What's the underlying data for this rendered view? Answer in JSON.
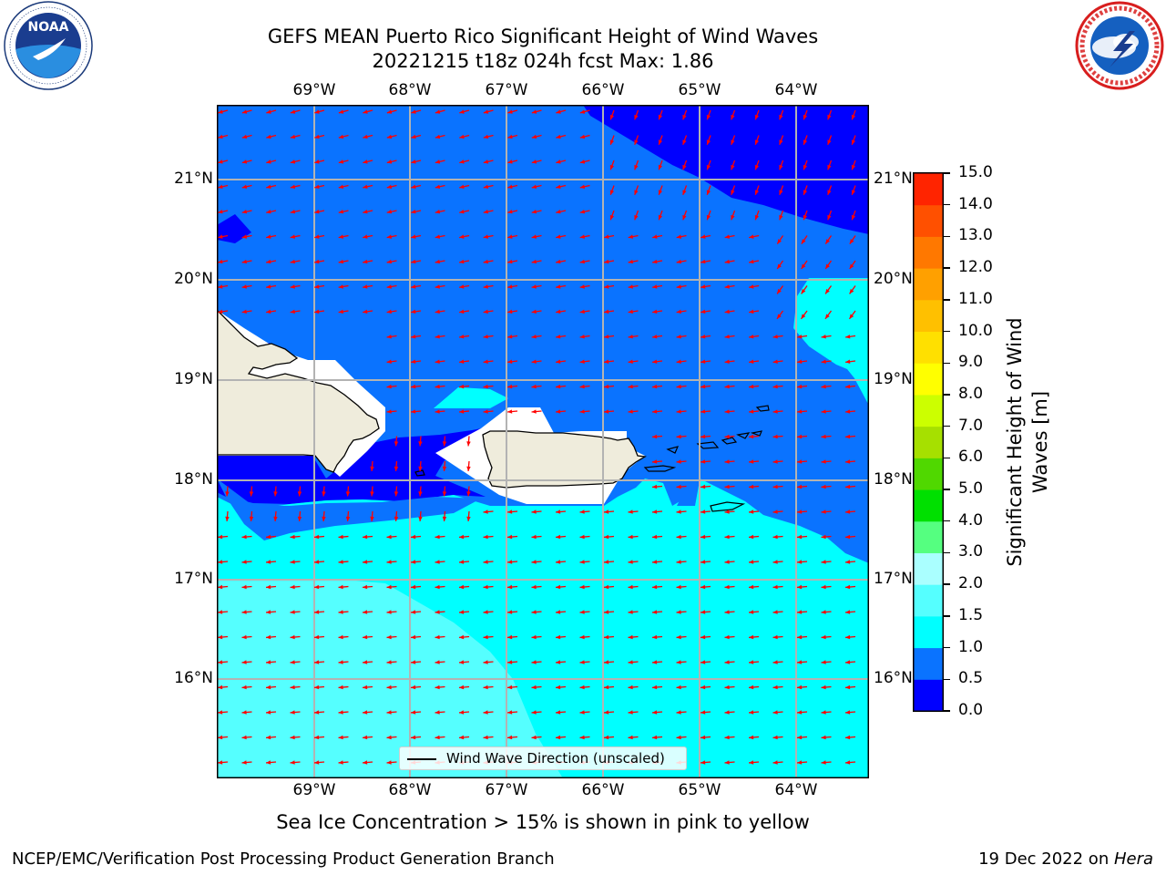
{
  "title": "GEFS MEAN Puerto Rico Significant Height of Wind Waves",
  "subtitle": "20221215 t18z 024h fcst   Max: 1.86",
  "lon_labels": [
    "69°W",
    "68°W",
    "67°W",
    "66°W",
    "65°W",
    "64°W"
  ],
  "lat_labels": [
    "21°N",
    "20°N",
    "19°N",
    "18°N",
    "17°N",
    "16°N"
  ],
  "legend_label": "Wind Wave Direction (unscaled)",
  "colorbar": {
    "title_line1": "Significant Height of Wind",
    "title_line2": "Waves [m]",
    "ticks": [
      "0.0",
      "0.5",
      "1.0",
      "1.5",
      "2.0",
      "3.0",
      "4.0",
      "5.0",
      "6.0",
      "7.0",
      "8.0",
      "9.0",
      "10.0",
      "11.0",
      "12.0",
      "13.0",
      "14.0",
      "15.0"
    ],
    "colors": [
      "#0000ff",
      "#0a73ff",
      "#00ffff",
      "#55ffff",
      "#aaffff",
      "#55ff80",
      "#00e000",
      "#50d800",
      "#a6e000",
      "#ccff00",
      "#ffff00",
      "#ffe000",
      "#ffc000",
      "#ffa000",
      "#ff7800",
      "#ff5000",
      "#ff2400"
    ]
  },
  "ocean_colors": {
    "low": "#0000ff",
    "mid": "#0a73ff",
    "high": "#00ffff",
    "higher": "#55ffff"
  },
  "land_color": "#efecdc",
  "arrow_color": "#ff0000",
  "sea_ice_note": "Sea Ice Concentration > 15% is shown in pink to yellow",
  "footer_left": "NCEP/EMC/Verification Post Processing Product Generation Branch",
  "footer_right_date": "19 Dec 2022 on ",
  "footer_right_machine": "Hera",
  "logo_left": "noaa-logo",
  "logo_right": "nws-logo"
}
